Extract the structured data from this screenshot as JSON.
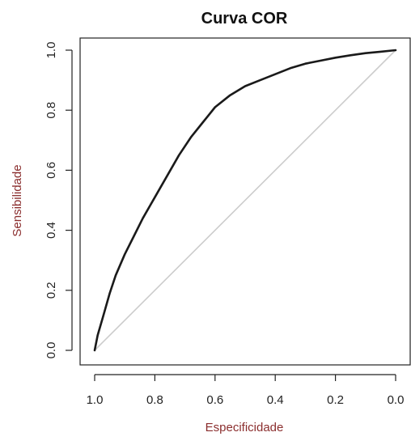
{
  "chart_data": {
    "type": "line",
    "title": "Curva COR",
    "xlabel": "Especificidade",
    "ylabel": "Sensibilidade",
    "xlim": [
      1.0,
      0.0
    ],
    "ylim": [
      0.0,
      1.0
    ],
    "x_reversed": true,
    "grid": false,
    "x_ticks": [
      "1.0",
      "0.8",
      "0.6",
      "0.4",
      "0.2",
      "0.0"
    ],
    "y_ticks": [
      "0.0",
      "0.2",
      "0.4",
      "0.6",
      "0.8",
      "1.0"
    ],
    "colors": {
      "curve": "#1a1a1a",
      "reference": "#cccccc",
      "axis_label": "#8b2e2e"
    },
    "series": [
      {
        "values": [
          {
            "x": 1.0,
            "y": 0.0
          },
          {
            "x": 0.99,
            "y": 0.05
          },
          {
            "x": 0.97,
            "y": 0.12
          },
          {
            "x": 0.95,
            "y": 0.19
          },
          {
            "x": 0.93,
            "y": 0.25
          },
          {
            "x": 0.9,
            "y": 0.32
          },
          {
            "x": 0.87,
            "y": 0.38
          },
          {
            "x": 0.84,
            "y": 0.44
          },
          {
            "x": 0.8,
            "y": 0.51
          },
          {
            "x": 0.76,
            "y": 0.58
          },
          {
            "x": 0.72,
            "y": 0.65
          },
          {
            "x": 0.68,
            "y": 0.71
          },
          {
            "x": 0.64,
            "y": 0.76
          },
          {
            "x": 0.6,
            "y": 0.81
          },
          {
            "x": 0.55,
            "y": 0.85
          },
          {
            "x": 0.5,
            "y": 0.88
          },
          {
            "x": 0.45,
            "y": 0.9
          },
          {
            "x": 0.4,
            "y": 0.92
          },
          {
            "x": 0.35,
            "y": 0.94
          },
          {
            "x": 0.3,
            "y": 0.955
          },
          {
            "x": 0.25,
            "y": 0.965
          },
          {
            "x": 0.2,
            "y": 0.975
          },
          {
            "x": 0.15,
            "y": 0.983
          },
          {
            "x": 0.1,
            "y": 0.99
          },
          {
            "x": 0.05,
            "y": 0.995
          },
          {
            "x": 0.0,
            "y": 1.0
          }
        ]
      },
      {
        "values": [
          {
            "x": 1.0,
            "y": 0.0
          },
          {
            "x": 0.0,
            "y": 1.0
          }
        ]
      }
    ]
  }
}
